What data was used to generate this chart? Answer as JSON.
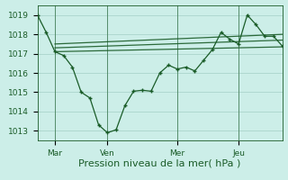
{
  "bg_color": "#cceee8",
  "grid_color": "#aad4cc",
  "line_color": "#1a5c28",
  "marker_color": "#1a5c28",
  "xlim": [
    0,
    28
  ],
  "ylim": [
    1012.5,
    1019.5
  ],
  "yticks": [
    1013,
    1014,
    1015,
    1016,
    1017,
    1018,
    1019
  ],
  "xtick_positions": [
    2,
    8,
    16,
    23
  ],
  "xtick_labels": [
    "Mar",
    "Ven",
    "Mer",
    "Jeu"
  ],
  "vlines": [
    2,
    8,
    16,
    23
  ],
  "series_main": {
    "x": [
      0,
      1,
      2,
      3,
      4,
      5,
      6,
      7,
      8,
      9,
      10,
      11,
      12,
      13,
      14,
      15,
      16,
      17,
      18,
      19,
      20,
      21,
      22,
      23,
      24,
      25,
      26,
      27,
      28
    ],
    "y": [
      1019.0,
      1018.1,
      1017.1,
      1016.9,
      1016.3,
      1015.0,
      1014.7,
      1013.3,
      1012.9,
      1013.05,
      1014.3,
      1015.05,
      1015.1,
      1015.05,
      1016.0,
      1016.4,
      1016.2,
      1016.3,
      1016.1,
      1016.65,
      1017.2,
      1018.1,
      1017.75,
      1017.5,
      1019.0,
      1018.5,
      1017.9,
      1017.9,
      1017.4
    ]
  },
  "series_flat1": {
    "x": [
      2,
      28
    ],
    "y": [
      1017.1,
      1017.35
    ]
  },
  "series_flat2": {
    "x": [
      2,
      28
    ],
    "y": [
      1017.3,
      1017.7
    ]
  },
  "series_flat3": {
    "x": [
      2,
      28
    ],
    "y": [
      1017.5,
      1018.0
    ]
  },
  "xlabel": "Pression niveau de la mer( hPa )",
  "xlabel_fontsize": 8,
  "xlabel_color": "#1a5c28",
  "tick_fontsize": 6.5
}
